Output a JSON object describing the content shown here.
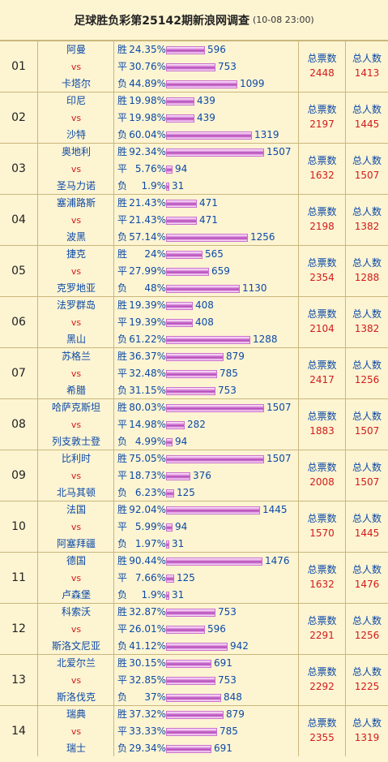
{
  "header": {
    "title": "足球胜负彩第25142期新浪网调查",
    "time": "(10-08 23:00)"
  },
  "labels": {
    "vs": "vs",
    "win": "胜",
    "draw": "平",
    "loss": "负",
    "total_votes": "总票数",
    "total_people": "总人数"
  },
  "matches": [
    {
      "no": "01",
      "home": "阿曼",
      "away": "卡塔尔",
      "win_pct": "24.35%",
      "win": 596,
      "draw_pct": "30.76%",
      "draw": 753,
      "loss_pct": "44.89%",
      "loss": 1099,
      "total_votes": 2448,
      "total_people": 1413
    },
    {
      "no": "02",
      "home": "印尼",
      "away": "沙特",
      "win_pct": "19.98%",
      "win": 439,
      "draw_pct": "19.98%",
      "draw": 439,
      "loss_pct": "60.04%",
      "loss": 1319,
      "total_votes": 2197,
      "total_people": 1445
    },
    {
      "no": "03",
      "home": "奥地利",
      "away": "圣马力诺",
      "win_pct": "92.34%",
      "win": 1507,
      "draw_pct": "5.76%",
      "draw": 94,
      "loss_pct": "1.9%",
      "loss": 31,
      "total_votes": 1632,
      "total_people": 1507
    },
    {
      "no": "04",
      "home": "塞浦路斯",
      "away": "波黑",
      "win_pct": "21.43%",
      "win": 471,
      "draw_pct": "21.43%",
      "draw": 471,
      "loss_pct": "57.14%",
      "loss": 1256,
      "total_votes": 2198,
      "total_people": 1382
    },
    {
      "no": "05",
      "home": "捷克",
      "away": "克罗地亚",
      "win_pct": "24%",
      "win": 565,
      "draw_pct": "27.99%",
      "draw": 659,
      "loss_pct": "48%",
      "loss": 1130,
      "total_votes": 2354,
      "total_people": 1288
    },
    {
      "no": "06",
      "home": "法罗群岛",
      "away": "黑山",
      "win_pct": "19.39%",
      "win": 408,
      "draw_pct": "19.39%",
      "draw": 408,
      "loss_pct": "61.22%",
      "loss": 1288,
      "total_votes": 2104,
      "total_people": 1382
    },
    {
      "no": "07",
      "home": "苏格兰",
      "away": "希腊",
      "win_pct": "36.37%",
      "win": 879,
      "draw_pct": "32.48%",
      "draw": 785,
      "loss_pct": "31.15%",
      "loss": 753,
      "total_votes": 2417,
      "total_people": 1256
    },
    {
      "no": "08",
      "home": "哈萨克斯坦",
      "away": "列支敦士登",
      "win_pct": "80.03%",
      "win": 1507,
      "draw_pct": "14.98%",
      "draw": 282,
      "loss_pct": "4.99%",
      "loss": 94,
      "total_votes": 1883,
      "total_people": 1507
    },
    {
      "no": "09",
      "home": "比利时",
      "away": "北马其顿",
      "win_pct": "75.05%",
      "win": 1507,
      "draw_pct": "18.73%",
      "draw": 376,
      "loss_pct": "6.23%",
      "loss": 125,
      "total_votes": 2008,
      "total_people": 1507
    },
    {
      "no": "10",
      "home": "法国",
      "away": "阿塞拜疆",
      "win_pct": "92.04%",
      "win": 1445,
      "draw_pct": "5.99%",
      "draw": 94,
      "loss_pct": "1.97%",
      "loss": 31,
      "total_votes": 1570,
      "total_people": 1445
    },
    {
      "no": "11",
      "home": "德国",
      "away": "卢森堡",
      "win_pct": "90.44%",
      "win": 1476,
      "draw_pct": "7.66%",
      "draw": 125,
      "loss_pct": "1.9%",
      "loss": 31,
      "total_votes": 1632,
      "total_people": 1476
    },
    {
      "no": "12",
      "home": "科索沃",
      "away": "斯洛文尼亚",
      "win_pct": "32.87%",
      "win": 753,
      "draw_pct": "26.01%",
      "draw": 596,
      "loss_pct": "41.12%",
      "loss": 942,
      "total_votes": 2291,
      "total_people": 1256
    },
    {
      "no": "13",
      "home": "北爱尔兰",
      "away": "斯洛伐克",
      "win_pct": "30.15%",
      "win": 691,
      "draw_pct": "32.85%",
      "draw": 753,
      "loss_pct": "37%",
      "loss": 848,
      "total_votes": 2292,
      "total_people": 1225
    },
    {
      "no": "14",
      "home": "瑞典",
      "away": "瑞士",
      "win_pct": "37.32%",
      "win": 879,
      "draw_pct": "33.33%",
      "draw": 785,
      "loss_pct": "29.34%",
      "loss": 691,
      "total_votes": 2355,
      "total_people": 1319
    }
  ]
}
